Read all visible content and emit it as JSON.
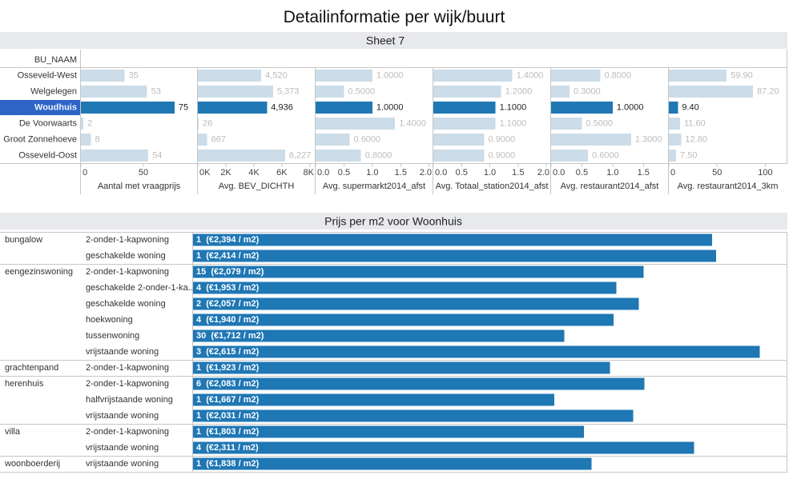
{
  "title": "Detailinformatie per wijk/buurt",
  "colors": {
    "bar": "#1f77b4",
    "bar_muted": "#ccdce8",
    "selection": "#2e64c6"
  },
  "chart_data": [
    {
      "type": "bar",
      "title": "Sheet 7",
      "row_header": "BU_NAAM",
      "categories": [
        "Osseveld-West",
        "Welgelegen",
        "Woudhuis",
        "De Voorwaarts",
        "Groot Zonnehoeve",
        "Osseveld-Oost"
      ],
      "selected": "Woudhuis",
      "legend": "none",
      "series": [
        {
          "name": "Aantal met vraagprijs",
          "values": [
            35,
            53,
            75,
            2,
            8,
            54
          ],
          "value_labels": [
            "35",
            "53",
            "75",
            "2",
            "8",
            "54"
          ],
          "xlim": [
            0,
            93
          ],
          "ticks": [
            0,
            50
          ],
          "tick_labels": [
            "0",
            "50"
          ]
        },
        {
          "name": "Avg. BEV_DICHTH",
          "values": [
            4520,
            5373,
            4936,
            26,
            667,
            6227
          ],
          "value_labels": [
            "4,520",
            "5,373",
            "4,936",
            "26",
            "667",
            "6,227"
          ],
          "xlim": [
            0,
            8350
          ],
          "ticks": [
            0,
            2000,
            4000,
            6000,
            8000
          ],
          "tick_labels": [
            "0K",
            "2K",
            "4K",
            "6K",
            "8K"
          ]
        },
        {
          "name": "Avg. supermarkt2014_afst",
          "values": [
            1.0,
            0.5,
            1.0,
            1.4,
            0.6,
            0.8
          ],
          "value_labels": [
            "1.0000",
            "0.5000",
            "1.0000",
            "1.4000",
            "0.6000",
            "0.8000"
          ],
          "xlim": [
            0,
            2.06
          ],
          "ticks": [
            0,
            0.5,
            1.0,
            1.5,
            2.0
          ],
          "tick_labels": [
            "0.0",
            "0.5",
            "1.0",
            "1.5",
            "2.0"
          ]
        },
        {
          "name": "Avg. Totaal_station2014_afst",
          "values": [
            1.4,
            1.2,
            1.1,
            1.1,
            0.9,
            0.9
          ],
          "value_labels": [
            "1.4000",
            "1.2000",
            "1.1000",
            "1.1000",
            "0.9000",
            "0.9000"
          ],
          "xlim": [
            0,
            2.07
          ],
          "ticks": [
            0,
            0.5,
            1.0,
            1.5,
            2.0
          ],
          "tick_labels": [
            "0.0",
            "0.5",
            "1.0",
            "1.5",
            "2.0"
          ]
        },
        {
          "name": "Avg. restaurant2014_afst",
          "values": [
            0.8,
            0.3,
            1.0,
            0.5,
            1.3,
            0.6
          ],
          "value_labels": [
            "0.8000",
            "0.3000",
            "1.0000",
            "0.5000",
            "1.3000",
            "0.6000"
          ],
          "xlim": [
            0,
            1.9
          ],
          "ticks": [
            0,
            0.5,
            1.0,
            1.5
          ],
          "tick_labels": [
            "0.0",
            "0.5",
            "1.0",
            "1.5"
          ]
        },
        {
          "name": "Avg. restaurant2014_3km",
          "values": [
            59.9,
            87.2,
            9.4,
            11.6,
            12.8,
            7.5
          ],
          "value_labels": [
            "59.90",
            "87.20",
            "9.40",
            "11.60",
            "12.80",
            "7.50"
          ],
          "xlim": [
            0,
            122
          ],
          "ticks": [
            0,
            50,
            100
          ],
          "tick_labels": [
            "0",
            "50",
            "100"
          ]
        }
      ]
    },
    {
      "type": "bar",
      "title": "Prijs per m2 voor Woonhuis",
      "xlabel": "",
      "ylabel": "",
      "xlim": [
        0,
        2742
      ],
      "groups": [
        {
          "name": "bungalow",
          "rows": [
            {
              "category": "2-onder-1-kapwoning",
              "count": 1,
              "price": 2394,
              "label": "1  (€2,394 / m2)"
            },
            {
              "category": "geschakelde woning",
              "count": 1,
              "price": 2414,
              "label": "1  (€2,414 / m2)"
            }
          ]
        },
        {
          "name": "eengezinswoning",
          "rows": [
            {
              "category": "2-onder-1-kapwoning",
              "count": 15,
              "price": 2079,
              "label": "15  (€2,079 / m2)"
            },
            {
              "category": "geschakelde 2-onder-1-ka..",
              "count": 4,
              "price": 1953,
              "label": "4  (€1,953 / m2)"
            },
            {
              "category": "geschakelde woning",
              "count": 2,
              "price": 2057,
              "label": "2  (€2,057 / m2)"
            },
            {
              "category": "hoekwoning",
              "count": 4,
              "price": 1940,
              "label": "4  (€1,940 / m2)"
            },
            {
              "category": "tussenwoning",
              "count": 30,
              "price": 1712,
              "label": "30  (€1,712 / m2)"
            },
            {
              "category": "vrijstaande woning",
              "count": 3,
              "price": 2615,
              "label": "3  (€2,615 / m2)"
            }
          ]
        },
        {
          "name": "grachtenpand",
          "rows": [
            {
              "category": "2-onder-1-kapwoning",
              "count": 1,
              "price": 1923,
              "label": "1  (€1,923 / m2)"
            }
          ]
        },
        {
          "name": "herenhuis",
          "rows": [
            {
              "category": "2-onder-1-kapwoning",
              "count": 6,
              "price": 2083,
              "label": "6  (€2,083 / m2)"
            },
            {
              "category": "halfvrijstaande woning",
              "count": 1,
              "price": 1667,
              "label": "1  (€1,667 / m2)"
            },
            {
              "category": "vrijstaande woning",
              "count": 1,
              "price": 2031,
              "label": "1  (€2,031 / m2)"
            }
          ]
        },
        {
          "name": "villa",
          "rows": [
            {
              "category": "2-onder-1-kapwoning",
              "count": 1,
              "price": 1803,
              "label": "1  (€1,803 / m2)"
            },
            {
              "category": "vrijstaande woning",
              "count": 4,
              "price": 2311,
              "label": "4  (€2,311 / m2)"
            }
          ]
        },
        {
          "name": "woonboerderij",
          "rows": [
            {
              "category": "vrijstaande woning",
              "count": 1,
              "price": 1838,
              "label": "1  (€1,838 / m2)"
            }
          ]
        }
      ]
    }
  ]
}
